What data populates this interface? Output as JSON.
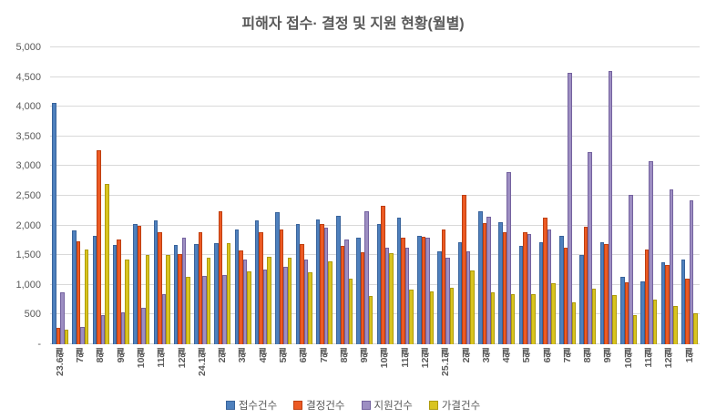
{
  "title": "피해자 접수· 결정 및 지원 현황(월별)",
  "y_axis": {
    "tick_labels": [
      "5,000",
      "4,500",
      "4,000",
      "3,500",
      "3,000",
      "2,500",
      "2,000",
      "1,500",
      "1,000",
      "500",
      "-"
    ]
  },
  "legend_items": [
    "접수건수",
    "결정건수",
    "지원건수",
    "가결건수"
  ],
  "colors": {
    "reception_fill": "#4E80BD",
    "reception_border": "#38639B",
    "decision_fill": "#EC5A24",
    "decision_border": "#BE3F10",
    "support_fill": "#9D8EC2",
    "support_border": "#74629F",
    "approval_fill": "#D9C41F",
    "approval_border": "#AE9B0A",
    "gridline": "#d9d9d9",
    "text": "#595959"
  },
  "chart_data": {
    "type": "bar",
    "title": "피해자 접수· 결정 및 지원 현황(월별)",
    "xlabel": "",
    "ylabel": "",
    "ylim": [
      0,
      5000
    ],
    "ytick_step": 500,
    "grid": true,
    "legend_position": "bottom",
    "categories": [
      "23.6월",
      "7월",
      "8월",
      "9월",
      "10월",
      "11월",
      "12월",
      "24.1월",
      "2월",
      "3월",
      "4월",
      "5월",
      "6월",
      "7월",
      "8월",
      "9월",
      "10월",
      "11월",
      "12월",
      "25.1월",
      "2월",
      "3월",
      "4월",
      "5월",
      "6월",
      "7월",
      "8월",
      "9월",
      "10월",
      "11월",
      "12월",
      "1월"
    ],
    "series": [
      {
        "name": "접수건수",
        "semantic": "reception",
        "values": [
          4070,
          1910,
          1830,
          1670,
          2020,
          2080,
          1670,
          1690,
          1700,
          1940,
          2080,
          2220,
          2030,
          2100,
          2160,
          1800,
          2030,
          2130,
          1830,
          1570,
          1720,
          2240,
          2060,
          1660,
          1720,
          1820,
          1500,
          1720,
          1140,
          1060,
          1380,
          1420
        ]
      },
      {
        "name": "결정건수",
        "semantic": "decision",
        "values": [
          270,
          1730,
          3260,
          1770,
          2000,
          1890,
          1520,
          1890,
          2240,
          1580,
          1890,
          1930,
          1690,
          2030,
          1650,
          1550,
          2330,
          1800,
          1810,
          1930,
          2510,
          2040,
          1880,
          1890,
          2130,
          1620,
          1980,
          1690,
          1040,
          1600,
          1340,
          1110
        ]
      },
      {
        "name": "지원건수",
        "semantic": "support",
        "values": [
          880,
          290,
          490,
          540,
          610,
          850,
          1790,
          1150,
          1170,
          1420,
          1260,
          1300,
          1430,
          1960,
          1760,
          2240,
          1620,
          1620,
          1790,
          1450,
          1570,
          2150,
          2900,
          1860,
          1940,
          4570,
          3240,
          4600,
          2510,
          3090,
          2600,
          2430
        ]
      },
      {
        "name": "가결건수",
        "semantic": "approval",
        "values": [
          250,
          1600,
          2700,
          1420,
          1510,
          1500,
          1140,
          1450,
          1700,
          1230,
          1470,
          1460,
          1210,
          1400,
          1110,
          820,
          1530,
          920,
          890,
          950,
          1240,
          870,
          850,
          840,
          1020,
          710,
          930,
          830,
          490,
          750,
          650,
          520
        ]
      }
    ]
  }
}
